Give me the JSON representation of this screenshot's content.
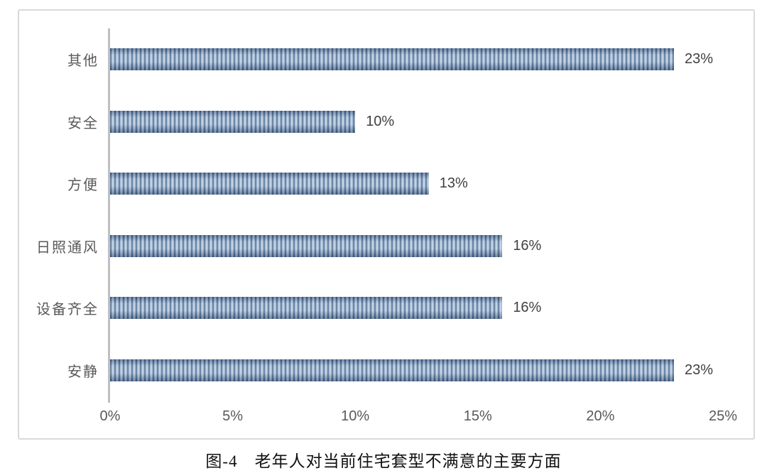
{
  "chart_data": {
    "type": "bar",
    "orientation": "horizontal",
    "title": "图-4　老年人对当前住宅套型不满意的主要方面",
    "categories": [
      "其他",
      "安全",
      "方便",
      "日照通风",
      "设备齐全",
      "安静"
    ],
    "values": [
      23,
      10,
      13,
      16,
      16,
      23
    ],
    "value_labels": [
      "23%",
      "10%",
      "13%",
      "16%",
      "16%",
      "23%"
    ],
    "xlabel": "",
    "ylabel": "",
    "xlim": [
      0,
      25
    ],
    "x_tick_values": [
      0,
      5,
      10,
      15,
      20,
      25
    ],
    "x_tick_labels": [
      "0%",
      "5%",
      "10%",
      "15%",
      "20%",
      "25%"
    ],
    "grid": "off",
    "legend": "none",
    "bar_style": "vertical-stripe-pattern",
    "colors": {
      "bar_stripe_dark": "#47688f",
      "bar_stripe_light": "#b3c7de",
      "axis_line": "#bfbfbf",
      "category_label": "#595959",
      "tick_label": "#595959",
      "value_label": "#404040",
      "frame_border": "#d9d9d9",
      "background": "#ffffff"
    }
  }
}
